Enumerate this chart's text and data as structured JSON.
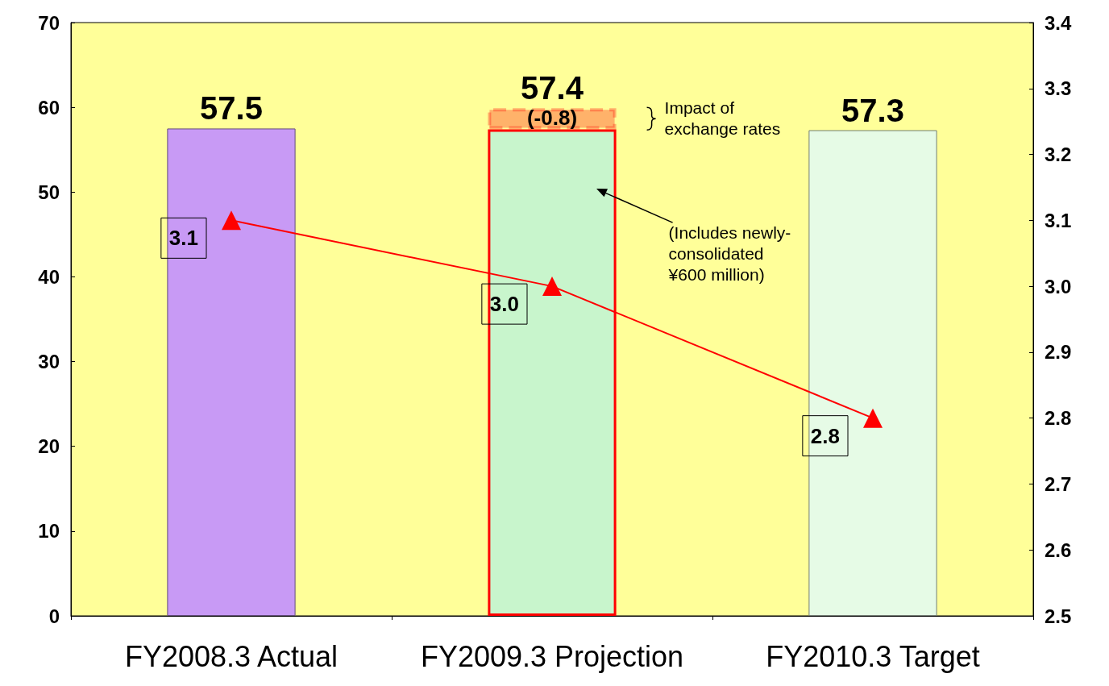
{
  "chart_data": {
    "type": "bar",
    "stacked": true,
    "categories": [
      "FY2008.3 Actual",
      "FY2009.3 Projection",
      "FY2010.3 Target"
    ],
    "series": [
      {
        "colors": [
          "#c89af5",
          "#c8f5cc",
          "#e6fbe6"
        ],
        "values": [
          57.5,
          57.4,
          57.3
        ],
        "value_labels": [
          "57.5",
          "57.4",
          "57.3"
        ]
      },
      {
        "color": "#ff0000",
        "values": [
          null,
          2.5,
          null
        ]
      },
      {
        "type": "line",
        "axis": "y2",
        "color": "#ff0000",
        "values": [
          3.1,
          3.0,
          2.8
        ],
        "value_labels": [
          "3.1",
          "3.0",
          "2.8"
        ]
      }
    ],
    "marker": "triangle",
    "ylim": [
      0,
      70
    ],
    "yticks": [
      0,
      10,
      20,
      30,
      40,
      50,
      60,
      70
    ],
    "y2lim": [
      2.5,
      3.4
    ],
    "y2ticks": [
      2.5,
      2.6,
      2.7,
      2.8,
      2.9,
      {
        "value": 3,
        "label": "3.0"
      },
      3.1,
      3.2,
      3.3,
      3.4
    ],
    "grid": false,
    "annotations": [
      "(-0.8)",
      "Impact of exchange rates",
      "(Includes newly-consolidated ¥600 million)"
    ]
  }
}
